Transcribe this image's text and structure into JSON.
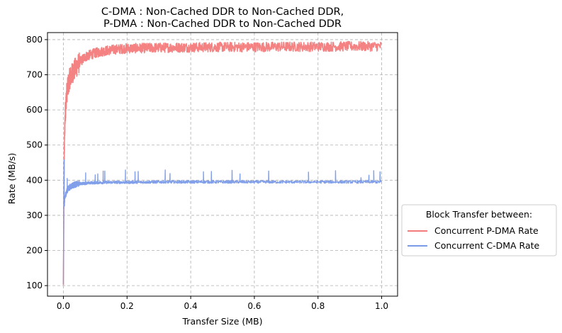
{
  "chart_data": {
    "type": "line",
    "title": [
      "C-DMA : Non-Cached DDR to Non-Cached DDR,",
      "P-DMA : Non-Cached DDR to Non-Cached DDR"
    ],
    "xlabel": "Transfer Size (MB)",
    "ylabel": "Rate (MB/s)",
    "xlim": [
      -0.05,
      1.05
    ],
    "ylim": [
      70,
      820
    ],
    "xticks": [
      0.0,
      0.2,
      0.4,
      0.6,
      0.8,
      1.0
    ],
    "xtick_labels": [
      "0.0",
      "0.2",
      "0.4",
      "0.6",
      "0.8",
      "1.0"
    ],
    "yticks": [
      100,
      200,
      300,
      400,
      500,
      600,
      700,
      800
    ],
    "ytick_labels": [
      "100",
      "200",
      "300",
      "400",
      "500",
      "600",
      "700",
      "800"
    ],
    "grid": true,
    "legend": {
      "title": "Block Transfer between:",
      "placement": "outside-right"
    },
    "series": [
      {
        "name": "Concurrent P-DMA Rate",
        "color": "#f47b7b",
        "noise": 14,
        "x": [
          0.0,
          0.001,
          0.002,
          0.004,
          0.006,
          0.008,
          0.01,
          0.015,
          0.02,
          0.03,
          0.04,
          0.05,
          0.07,
          0.1,
          0.13,
          0.16,
          0.2,
          0.3,
          0.4,
          0.5,
          0.6,
          0.7,
          0.8,
          0.9,
          1.0
        ],
        "y": [
          105,
          250,
          420,
          540,
          595,
          620,
          645,
          670,
          690,
          708,
          722,
          735,
          752,
          762,
          768,
          772,
          775,
          777,
          778,
          779,
          779,
          780,
          780,
          781,
          781
        ]
      },
      {
        "name": "Concurrent C-DMA Rate",
        "color": "#7b9be8",
        "noise": 4,
        "x": [
          0.0,
          0.001,
          0.002,
          0.003,
          0.005,
          0.008,
          0.012,
          0.02,
          0.03,
          0.05,
          0.08,
          0.1,
          0.15,
          0.2,
          0.3,
          0.4,
          0.5,
          0.6,
          0.7,
          0.8,
          0.9,
          1.0
        ],
        "y": [
          105,
          300,
          465,
          330,
          350,
          362,
          372,
          380,
          386,
          390,
          392,
          393,
          394,
          394,
          395,
          395,
          395,
          395,
          395,
          395,
          395,
          395
        ],
        "spikes": [
          {
            "x": 0.012,
            "y": 405
          },
          {
            "x": 0.07,
            "y": 421
          },
          {
            "x": 0.1,
            "y": 415
          },
          {
            "x": 0.108,
            "y": 418
          },
          {
            "x": 0.125,
            "y": 426
          },
          {
            "x": 0.13,
            "y": 426
          },
          {
            "x": 0.195,
            "y": 429
          },
          {
            "x": 0.225,
            "y": 424
          },
          {
            "x": 0.235,
            "y": 425
          },
          {
            "x": 0.32,
            "y": 429
          },
          {
            "x": 0.335,
            "y": 419
          },
          {
            "x": 0.44,
            "y": 424
          },
          {
            "x": 0.465,
            "y": 425
          },
          {
            "x": 0.53,
            "y": 428
          },
          {
            "x": 0.555,
            "y": 418
          },
          {
            "x": 0.645,
            "y": 426
          },
          {
            "x": 0.77,
            "y": 423
          },
          {
            "x": 0.855,
            "y": 427
          },
          {
            "x": 0.935,
            "y": 407
          },
          {
            "x": 0.96,
            "y": 414
          },
          {
            "x": 0.975,
            "y": 427
          },
          {
            "x": 0.995,
            "y": 424
          }
        ]
      }
    ]
  }
}
